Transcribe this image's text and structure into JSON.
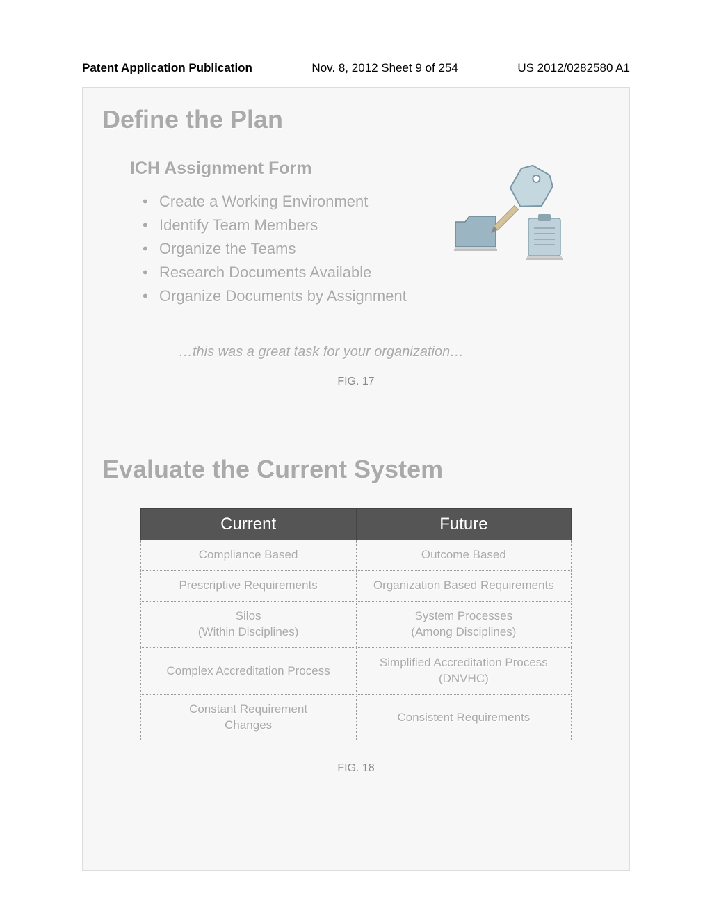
{
  "header": {
    "left": "Patent Application Publication",
    "center": "Nov. 8, 2012  Sheet 9 of 254",
    "right": "US 2012/0282580 A1"
  },
  "slide1": {
    "title": "Define the Plan",
    "subtitle": "ICH Assignment Form",
    "bullets": [
      "Create a Working Environment",
      "Identify Team Members",
      "Organize the Teams",
      "Research Documents Available",
      "Organize Documents by Assignment"
    ],
    "tagline": "…this was a great task for your organization…",
    "caption": "FIG. 17"
  },
  "slide2": {
    "title": "Evaluate the Current System",
    "table": {
      "headers": [
        "Current",
        "Future"
      ],
      "rows": [
        [
          "Compliance Based",
          "Outcome Based"
        ],
        [
          "Prescriptive Requirements",
          "Organization Based Requirements"
        ],
        [
          "Silos\n(Within Disciplines)",
          "System Processes\n(Among Disciplines)"
        ],
        [
          "Complex Accreditation Process",
          "Simplified Accreditation Process\n(DNVHC)"
        ],
        [
          "Constant Requirement\nChanges",
          "Consistent Requirements"
        ]
      ]
    },
    "caption": "FIG. 18"
  },
  "colors": {
    "text_gray": "#aaaaaa",
    "bg": "#f7f7f7",
    "table_header_bg": "#555555",
    "table_header_fg": "#ffffff",
    "border": "#999999"
  }
}
